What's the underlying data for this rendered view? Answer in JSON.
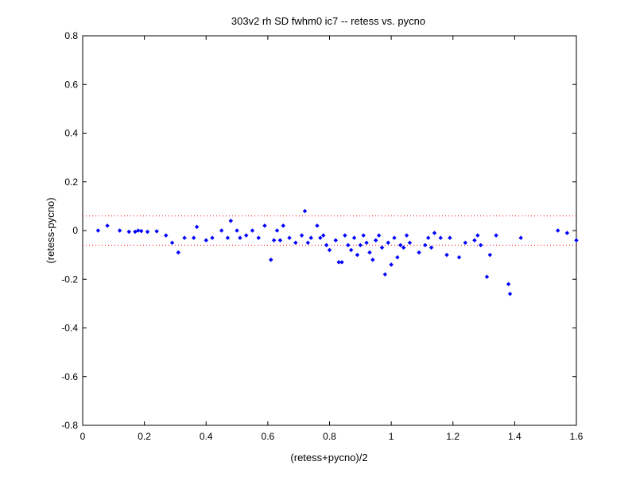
{
  "chart_data": {
    "type": "scatter",
    "title": "303v2 rh SD fwhm0 ic7 -- retess vs. pycno",
    "xlabel": "(retess+pycno)/2",
    "ylabel": "(retess-pycno)",
    "xlim": [
      0,
      1.6
    ],
    "ylim": [
      -0.8,
      0.8
    ],
    "xticks": [
      0,
      0.2,
      0.4,
      0.6,
      0.8,
      1,
      1.2,
      1.4,
      1.6
    ],
    "xtick_labels": [
      "0",
      "0.2",
      "0.4",
      "0.6",
      "0.8",
      "1",
      "1.2",
      "1.4",
      "1.6"
    ],
    "yticks": [
      -0.8,
      -0.6,
      -0.4,
      -0.2,
      0,
      0.2,
      0.4,
      0.6,
      0.8
    ],
    "ytick_labels": [
      "-0.8",
      "-0.6",
      "-0.4",
      "-0.2",
      "0",
      "0.2",
      "0.4",
      "0.6",
      "0.8"
    ],
    "grid": false,
    "marker_color": "#0000ff",
    "reference_lines": {
      "values": [
        0.06,
        -0.06
      ],
      "style": "dotted",
      "color": "#ff0000"
    },
    "points": [
      [
        0.05,
        0.0
      ],
      [
        0.08,
        0.02
      ],
      [
        0.12,
        0.0
      ],
      [
        0.15,
        -0.005
      ],
      [
        0.17,
        -0.005
      ],
      [
        0.18,
        0.0
      ],
      [
        0.19,
        -0.002
      ],
      [
        0.21,
        -0.005
      ],
      [
        0.24,
        -0.003
      ],
      [
        0.27,
        -0.02
      ],
      [
        0.29,
        -0.05
      ],
      [
        0.31,
        -0.09
      ],
      [
        0.33,
        -0.03
      ],
      [
        0.36,
        -0.03
      ],
      [
        0.37,
        0.015
      ],
      [
        0.4,
        -0.04
      ],
      [
        0.42,
        -0.03
      ],
      [
        0.45,
        0.0
      ],
      [
        0.47,
        -0.03
      ],
      [
        0.48,
        0.04
      ],
      [
        0.5,
        0.0
      ],
      [
        0.51,
        -0.03
      ],
      [
        0.53,
        -0.02
      ],
      [
        0.55,
        0.0
      ],
      [
        0.57,
        -0.03
      ],
      [
        0.59,
        0.02
      ],
      [
        0.61,
        -0.12
      ],
      [
        0.62,
        -0.04
      ],
      [
        0.63,
        0.0
      ],
      [
        0.64,
        -0.04
      ],
      [
        0.65,
        0.02
      ],
      [
        0.67,
        -0.03
      ],
      [
        0.69,
        -0.05
      ],
      [
        0.71,
        -0.02
      ],
      [
        0.72,
        0.08
      ],
      [
        0.73,
        -0.05
      ],
      [
        0.74,
        -0.03
      ],
      [
        0.76,
        0.02
      ],
      [
        0.77,
        -0.03
      ],
      [
        0.78,
        -0.02
      ],
      [
        0.79,
        -0.06
      ],
      [
        0.8,
        -0.08
      ],
      [
        0.82,
        -0.04
      ],
      [
        0.83,
        -0.13
      ],
      [
        0.84,
        -0.13
      ],
      [
        0.85,
        -0.02
      ],
      [
        0.86,
        -0.06
      ],
      [
        0.87,
        -0.08
      ],
      [
        0.88,
        -0.03
      ],
      [
        0.89,
        -0.1
      ],
      [
        0.9,
        -0.06
      ],
      [
        0.91,
        -0.02
      ],
      [
        0.92,
        -0.05
      ],
      [
        0.93,
        -0.09
      ],
      [
        0.94,
        -0.12
      ],
      [
        0.95,
        -0.04
      ],
      [
        0.96,
        -0.02
      ],
      [
        0.97,
        -0.07
      ],
      [
        0.98,
        -0.18
      ],
      [
        0.99,
        -0.05
      ],
      [
        1.0,
        -0.14
      ],
      [
        1.01,
        -0.03
      ],
      [
        1.02,
        -0.11
      ],
      [
        1.03,
        -0.06
      ],
      [
        1.04,
        -0.07
      ],
      [
        1.05,
        -0.02
      ],
      [
        1.06,
        -0.05
      ],
      [
        1.09,
        -0.09
      ],
      [
        1.11,
        -0.06
      ],
      [
        1.12,
        -0.03
      ],
      [
        1.13,
        -0.07
      ],
      [
        1.14,
        -0.01
      ],
      [
        1.16,
        -0.03
      ],
      [
        1.18,
        -0.1
      ],
      [
        1.19,
        -0.03
      ],
      [
        1.22,
        -0.11
      ],
      [
        1.24,
        -0.05
      ],
      [
        1.27,
        -0.04
      ],
      [
        1.28,
        -0.02
      ],
      [
        1.29,
        -0.06
      ],
      [
        1.31,
        -0.19
      ],
      [
        1.32,
        -0.1
      ],
      [
        1.34,
        -0.02
      ],
      [
        1.38,
        -0.22
      ],
      [
        1.385,
        -0.26
      ],
      [
        1.42,
        -0.03
      ],
      [
        1.54,
        0.0
      ],
      [
        1.57,
        -0.01
      ],
      [
        1.6,
        -0.04
      ]
    ]
  }
}
